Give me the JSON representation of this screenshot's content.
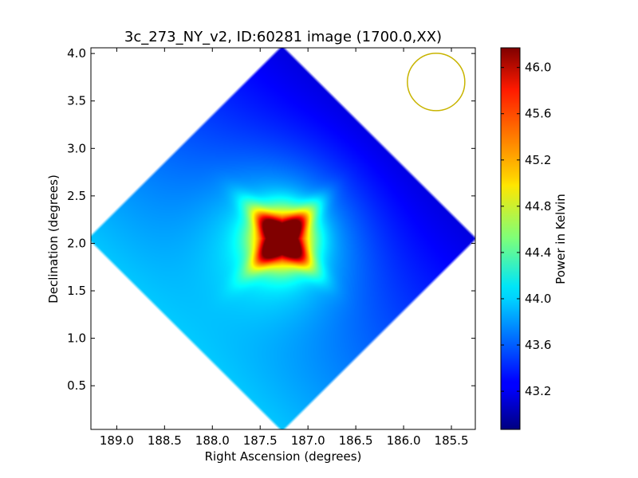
{
  "chart_data": {
    "type": "heatmap",
    "title": "3c_273_NY_v2, ID:60281 image (1700.0,XX)",
    "xlabel": "Right Ascension (degrees)",
    "ylabel": "Declination (degrees)",
    "xlim": [
      189.27,
      185.25
    ],
    "ylim": [
      0.04,
      4.06
    ],
    "x_ticks": [
      189.0,
      188.5,
      188.0,
      187.5,
      187.0,
      186.5,
      186.0,
      185.5
    ],
    "x_tick_labels": [
      "189.0",
      "188.5",
      "188.0",
      "187.5",
      "187.0",
      "186.5",
      "186.0",
      "185.5"
    ],
    "y_ticks": [
      0.5,
      1.0,
      1.5,
      2.0,
      2.5,
      3.0,
      3.5,
      4.0
    ],
    "y_tick_labels": [
      "0.5",
      "1.0",
      "1.5",
      "2.0",
      "2.5",
      "3.0",
      "3.5",
      "4.0"
    ],
    "colorbar": {
      "label": "Power in Kelvin",
      "range": [
        42.87,
        46.17
      ],
      "colormap": "jet",
      "ticks": [
        43.2,
        43.6,
        44.0,
        44.4,
        44.8,
        45.2,
        45.6,
        46.0
      ],
      "tick_labels": [
        "43.2",
        "43.6",
        "44.0",
        "44.4",
        "44.8",
        "45.2",
        "45.6",
        "46.0"
      ]
    },
    "beam": {
      "ra_center": 185.66,
      "dec_center": 3.7,
      "color": "#c8b400"
    },
    "map": {
      "center_ra": 187.27,
      "center_dec": 2.05,
      "half_width_deg": 2.05,
      "peak_value": 46.17,
      "background_value": 43.3,
      "gradient": "cooler toward upper-right, warmer toward lower-left"
    },
    "grid": false
  }
}
